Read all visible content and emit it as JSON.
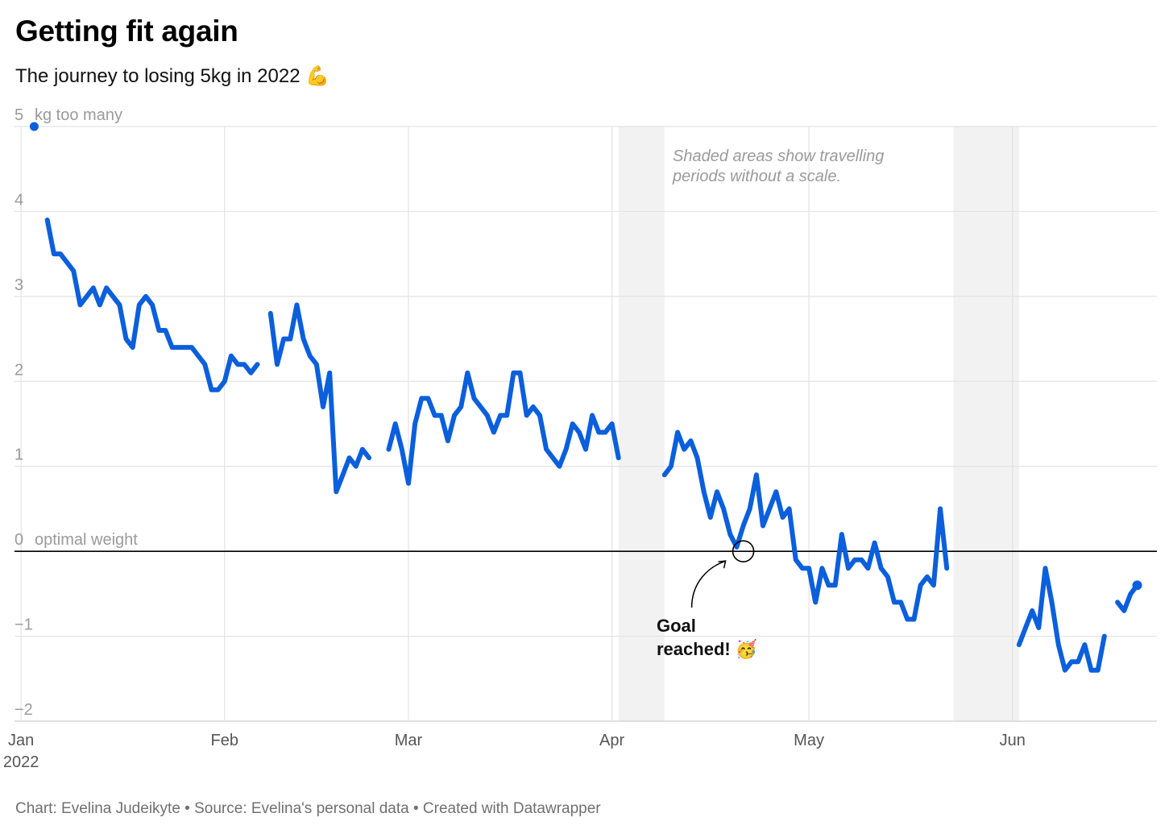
{
  "header": {
    "title": "Getting fit again",
    "subtitle": "The journey to losing 5kg in 2022 💪"
  },
  "footer": {
    "credit": "Chart: Evelina Judeikyte • Source: Evelina's personal data • Created with Datawrapper"
  },
  "chart_data": {
    "type": "line",
    "title": "Getting fit again",
    "subtitle": "The journey to losing 5kg in 2022 💪",
    "ylabel": "kg too many",
    "zero_label": "optimal weight",
    "ylim": [
      -2,
      5
    ],
    "y_ticks": [
      5,
      4,
      3,
      2,
      1,
      0,
      -1,
      -2
    ],
    "y_tick_labels": [
      "5",
      "4",
      "3",
      "2",
      "1",
      "0",
      "−1",
      "−2"
    ],
    "x_domain": [
      "2021-12-31",
      "2022-06-23"
    ],
    "x_ticks": [
      {
        "date": "2022-01-01",
        "label": "Jan",
        "sublabel": "2022"
      },
      {
        "date": "2022-02-01",
        "label": "Feb",
        "sublabel": ""
      },
      {
        "date": "2022-03-01",
        "label": "Mar",
        "sublabel": ""
      },
      {
        "date": "2022-04-01",
        "label": "Apr",
        "sublabel": ""
      },
      {
        "date": "2022-05-01",
        "label": "May",
        "sublabel": ""
      },
      {
        "date": "2022-06-01",
        "label": "Jun",
        "sublabel": ""
      }
    ],
    "shaded_periods": [
      {
        "start": "2022-04-02",
        "end": "2022-04-09"
      },
      {
        "start": "2022-05-23",
        "end": "2022-06-02"
      }
    ],
    "shading_note": "Shaded areas show travelling periods without a scale.",
    "annotation": {
      "date": "2022-04-21",
      "value": 0,
      "text": "Goal reached! 🥳"
    },
    "colors": {
      "line": "#0B5FDC",
      "grid": "#e3e3e3",
      "shade": "#f2f2f2",
      "baseline": "#000000"
    },
    "series": [
      {
        "name": "kg too many",
        "points": [
          {
            "x": "2022-01-03",
            "y": 5.0
          }
        ]
      },
      {
        "name": "kg too many",
        "points": [
          {
            "x": "2022-01-05",
            "y": 3.9
          },
          {
            "x": "2022-01-06",
            "y": 3.5
          },
          {
            "x": "2022-01-07",
            "y": 3.5
          },
          {
            "x": "2022-01-08",
            "y": 3.4
          },
          {
            "x": "2022-01-09",
            "y": 3.3
          },
          {
            "x": "2022-01-10",
            "y": 2.9
          },
          {
            "x": "2022-01-11",
            "y": 3.0
          },
          {
            "x": "2022-01-12",
            "y": 3.1
          },
          {
            "x": "2022-01-13",
            "y": 2.9
          },
          {
            "x": "2022-01-14",
            "y": 3.1
          },
          {
            "x": "2022-01-15",
            "y": 3.0
          },
          {
            "x": "2022-01-16",
            "y": 2.9
          },
          {
            "x": "2022-01-17",
            "y": 2.5
          },
          {
            "x": "2022-01-18",
            "y": 2.4
          },
          {
            "x": "2022-01-19",
            "y": 2.9
          },
          {
            "x": "2022-01-20",
            "y": 3.0
          },
          {
            "x": "2022-01-21",
            "y": 2.9
          },
          {
            "x": "2022-01-22",
            "y": 2.6
          },
          {
            "x": "2022-01-23",
            "y": 2.6
          },
          {
            "x": "2022-01-24",
            "y": 2.4
          },
          {
            "x": "2022-01-25",
            "y": 2.4
          },
          {
            "x": "2022-01-26",
            "y": 2.4
          },
          {
            "x": "2022-01-27",
            "y": 2.4
          },
          {
            "x": "2022-01-28",
            "y": 2.3
          },
          {
            "x": "2022-01-29",
            "y": 2.2
          },
          {
            "x": "2022-01-30",
            "y": 1.9
          },
          {
            "x": "2022-01-31",
            "y": 1.9
          },
          {
            "x": "2022-02-01",
            "y": 2.0
          },
          {
            "x": "2022-02-02",
            "y": 2.3
          },
          {
            "x": "2022-02-03",
            "y": 2.2
          },
          {
            "x": "2022-02-04",
            "y": 2.2
          },
          {
            "x": "2022-02-05",
            "y": 2.1
          },
          {
            "x": "2022-02-06",
            "y": 2.2
          }
        ]
      },
      {
        "name": "kg too many",
        "points": [
          {
            "x": "2022-02-08",
            "y": 2.8
          },
          {
            "x": "2022-02-09",
            "y": 2.2
          },
          {
            "x": "2022-02-10",
            "y": 2.5
          },
          {
            "x": "2022-02-11",
            "y": 2.5
          },
          {
            "x": "2022-02-12",
            "y": 2.9
          },
          {
            "x": "2022-02-13",
            "y": 2.5
          },
          {
            "x": "2022-02-14",
            "y": 2.3
          },
          {
            "x": "2022-02-15",
            "y": 2.2
          },
          {
            "x": "2022-02-16",
            "y": 1.7
          },
          {
            "x": "2022-02-17",
            "y": 2.1
          },
          {
            "x": "2022-02-18",
            "y": 0.7
          },
          {
            "x": "2022-02-19",
            "y": 0.9
          },
          {
            "x": "2022-02-20",
            "y": 1.1
          },
          {
            "x": "2022-02-21",
            "y": 1.0
          },
          {
            "x": "2022-02-22",
            "y": 1.2
          },
          {
            "x": "2022-02-23",
            "y": 1.1
          }
        ]
      },
      {
        "name": "kg too many",
        "points": [
          {
            "x": "2022-02-26",
            "y": 1.2
          },
          {
            "x": "2022-02-27",
            "y": 1.5
          },
          {
            "x": "2022-02-28",
            "y": 1.2
          },
          {
            "x": "2022-03-01",
            "y": 0.8
          },
          {
            "x": "2022-03-02",
            "y": 1.5
          },
          {
            "x": "2022-03-03",
            "y": 1.8
          },
          {
            "x": "2022-03-04",
            "y": 1.8
          },
          {
            "x": "2022-03-05",
            "y": 1.6
          },
          {
            "x": "2022-03-06",
            "y": 1.6
          },
          {
            "x": "2022-03-07",
            "y": 1.3
          },
          {
            "x": "2022-03-08",
            "y": 1.6
          },
          {
            "x": "2022-03-09",
            "y": 1.7
          },
          {
            "x": "2022-03-10",
            "y": 2.1
          },
          {
            "x": "2022-03-11",
            "y": 1.8
          },
          {
            "x": "2022-03-12",
            "y": 1.7
          },
          {
            "x": "2022-03-13",
            "y": 1.6
          },
          {
            "x": "2022-03-14",
            "y": 1.4
          },
          {
            "x": "2022-03-15",
            "y": 1.6
          },
          {
            "x": "2022-03-16",
            "y": 1.6
          },
          {
            "x": "2022-03-17",
            "y": 2.1
          },
          {
            "x": "2022-03-18",
            "y": 2.1
          },
          {
            "x": "2022-03-19",
            "y": 1.6
          },
          {
            "x": "2022-03-20",
            "y": 1.7
          },
          {
            "x": "2022-03-21",
            "y": 1.6
          },
          {
            "x": "2022-03-22",
            "y": 1.2
          },
          {
            "x": "2022-03-23",
            "y": 1.1
          },
          {
            "x": "2022-03-24",
            "y": 1.0
          },
          {
            "x": "2022-03-25",
            "y": 1.2
          },
          {
            "x": "2022-03-26",
            "y": 1.5
          },
          {
            "x": "2022-03-27",
            "y": 1.4
          },
          {
            "x": "2022-03-28",
            "y": 1.2
          },
          {
            "x": "2022-03-29",
            "y": 1.6
          },
          {
            "x": "2022-03-30",
            "y": 1.4
          },
          {
            "x": "2022-03-31",
            "y": 1.4
          },
          {
            "x": "2022-04-01",
            "y": 1.5
          },
          {
            "x": "2022-04-02",
            "y": 1.1
          }
        ]
      },
      {
        "name": "kg too many",
        "points": [
          {
            "x": "2022-04-09",
            "y": 0.9
          },
          {
            "x": "2022-04-10",
            "y": 1.0
          },
          {
            "x": "2022-04-11",
            "y": 1.4
          },
          {
            "x": "2022-04-12",
            "y": 1.2
          },
          {
            "x": "2022-04-13",
            "y": 1.3
          },
          {
            "x": "2022-04-14",
            "y": 1.1
          },
          {
            "x": "2022-04-15",
            "y": 0.7
          },
          {
            "x": "2022-04-16",
            "y": 0.4
          },
          {
            "x": "2022-04-17",
            "y": 0.7
          },
          {
            "x": "2022-04-18",
            "y": 0.5
          },
          {
            "x": "2022-04-19",
            "y": 0.2
          },
          {
            "x": "2022-04-20",
            "y": 0.05
          },
          {
            "x": "2022-04-21",
            "y": 0.3
          },
          {
            "x": "2022-04-22",
            "y": 0.5
          },
          {
            "x": "2022-04-23",
            "y": 0.9
          },
          {
            "x": "2022-04-24",
            "y": 0.3
          },
          {
            "x": "2022-04-25",
            "y": 0.5
          },
          {
            "x": "2022-04-26",
            "y": 0.7
          },
          {
            "x": "2022-04-27",
            "y": 0.4
          },
          {
            "x": "2022-04-28",
            "y": 0.5
          },
          {
            "x": "2022-04-29",
            "y": -0.1
          },
          {
            "x": "2022-04-30",
            "y": -0.2
          },
          {
            "x": "2022-05-01",
            "y": -0.2
          },
          {
            "x": "2022-05-02",
            "y": -0.6
          },
          {
            "x": "2022-05-03",
            "y": -0.2
          },
          {
            "x": "2022-05-04",
            "y": -0.4
          },
          {
            "x": "2022-05-05",
            "y": -0.4
          },
          {
            "x": "2022-05-06",
            "y": 0.2
          },
          {
            "x": "2022-05-07",
            "y": -0.2
          },
          {
            "x": "2022-05-08",
            "y": -0.1
          },
          {
            "x": "2022-05-09",
            "y": -0.1
          },
          {
            "x": "2022-05-10",
            "y": -0.2
          },
          {
            "x": "2022-05-11",
            "y": 0.1
          },
          {
            "x": "2022-05-12",
            "y": -0.2
          },
          {
            "x": "2022-05-13",
            "y": -0.3
          },
          {
            "x": "2022-05-14",
            "y": -0.6
          },
          {
            "x": "2022-05-15",
            "y": -0.6
          },
          {
            "x": "2022-05-16",
            "y": -0.8
          },
          {
            "x": "2022-05-17",
            "y": -0.8
          },
          {
            "x": "2022-05-18",
            "y": -0.4
          },
          {
            "x": "2022-05-19",
            "y": -0.3
          },
          {
            "x": "2022-05-20",
            "y": -0.4
          },
          {
            "x": "2022-05-21",
            "y": 0.5
          },
          {
            "x": "2022-05-22",
            "y": -0.2
          }
        ]
      },
      {
        "name": "kg too many",
        "points": [
          {
            "x": "2022-06-02",
            "y": -1.1
          },
          {
            "x": "2022-06-03",
            "y": -0.9
          },
          {
            "x": "2022-06-04",
            "y": -0.7
          },
          {
            "x": "2022-06-05",
            "y": -0.9
          },
          {
            "x": "2022-06-06",
            "y": -0.2
          },
          {
            "x": "2022-06-07",
            "y": -0.6
          },
          {
            "x": "2022-06-08",
            "y": -1.1
          },
          {
            "x": "2022-06-09",
            "y": -1.4
          },
          {
            "x": "2022-06-10",
            "y": -1.3
          },
          {
            "x": "2022-06-11",
            "y": -1.3
          },
          {
            "x": "2022-06-12",
            "y": -1.1
          },
          {
            "x": "2022-06-13",
            "y": -1.4
          },
          {
            "x": "2022-06-14",
            "y": -1.4
          },
          {
            "x": "2022-06-15",
            "y": -1.0
          }
        ]
      },
      {
        "name": "kg too many",
        "points": [
          {
            "x": "2022-06-17",
            "y": -0.6
          },
          {
            "x": "2022-06-18",
            "y": -0.7
          },
          {
            "x": "2022-06-19",
            "y": -0.5
          },
          {
            "x": "2022-06-20",
            "y": -0.4
          }
        ]
      }
    ]
  }
}
